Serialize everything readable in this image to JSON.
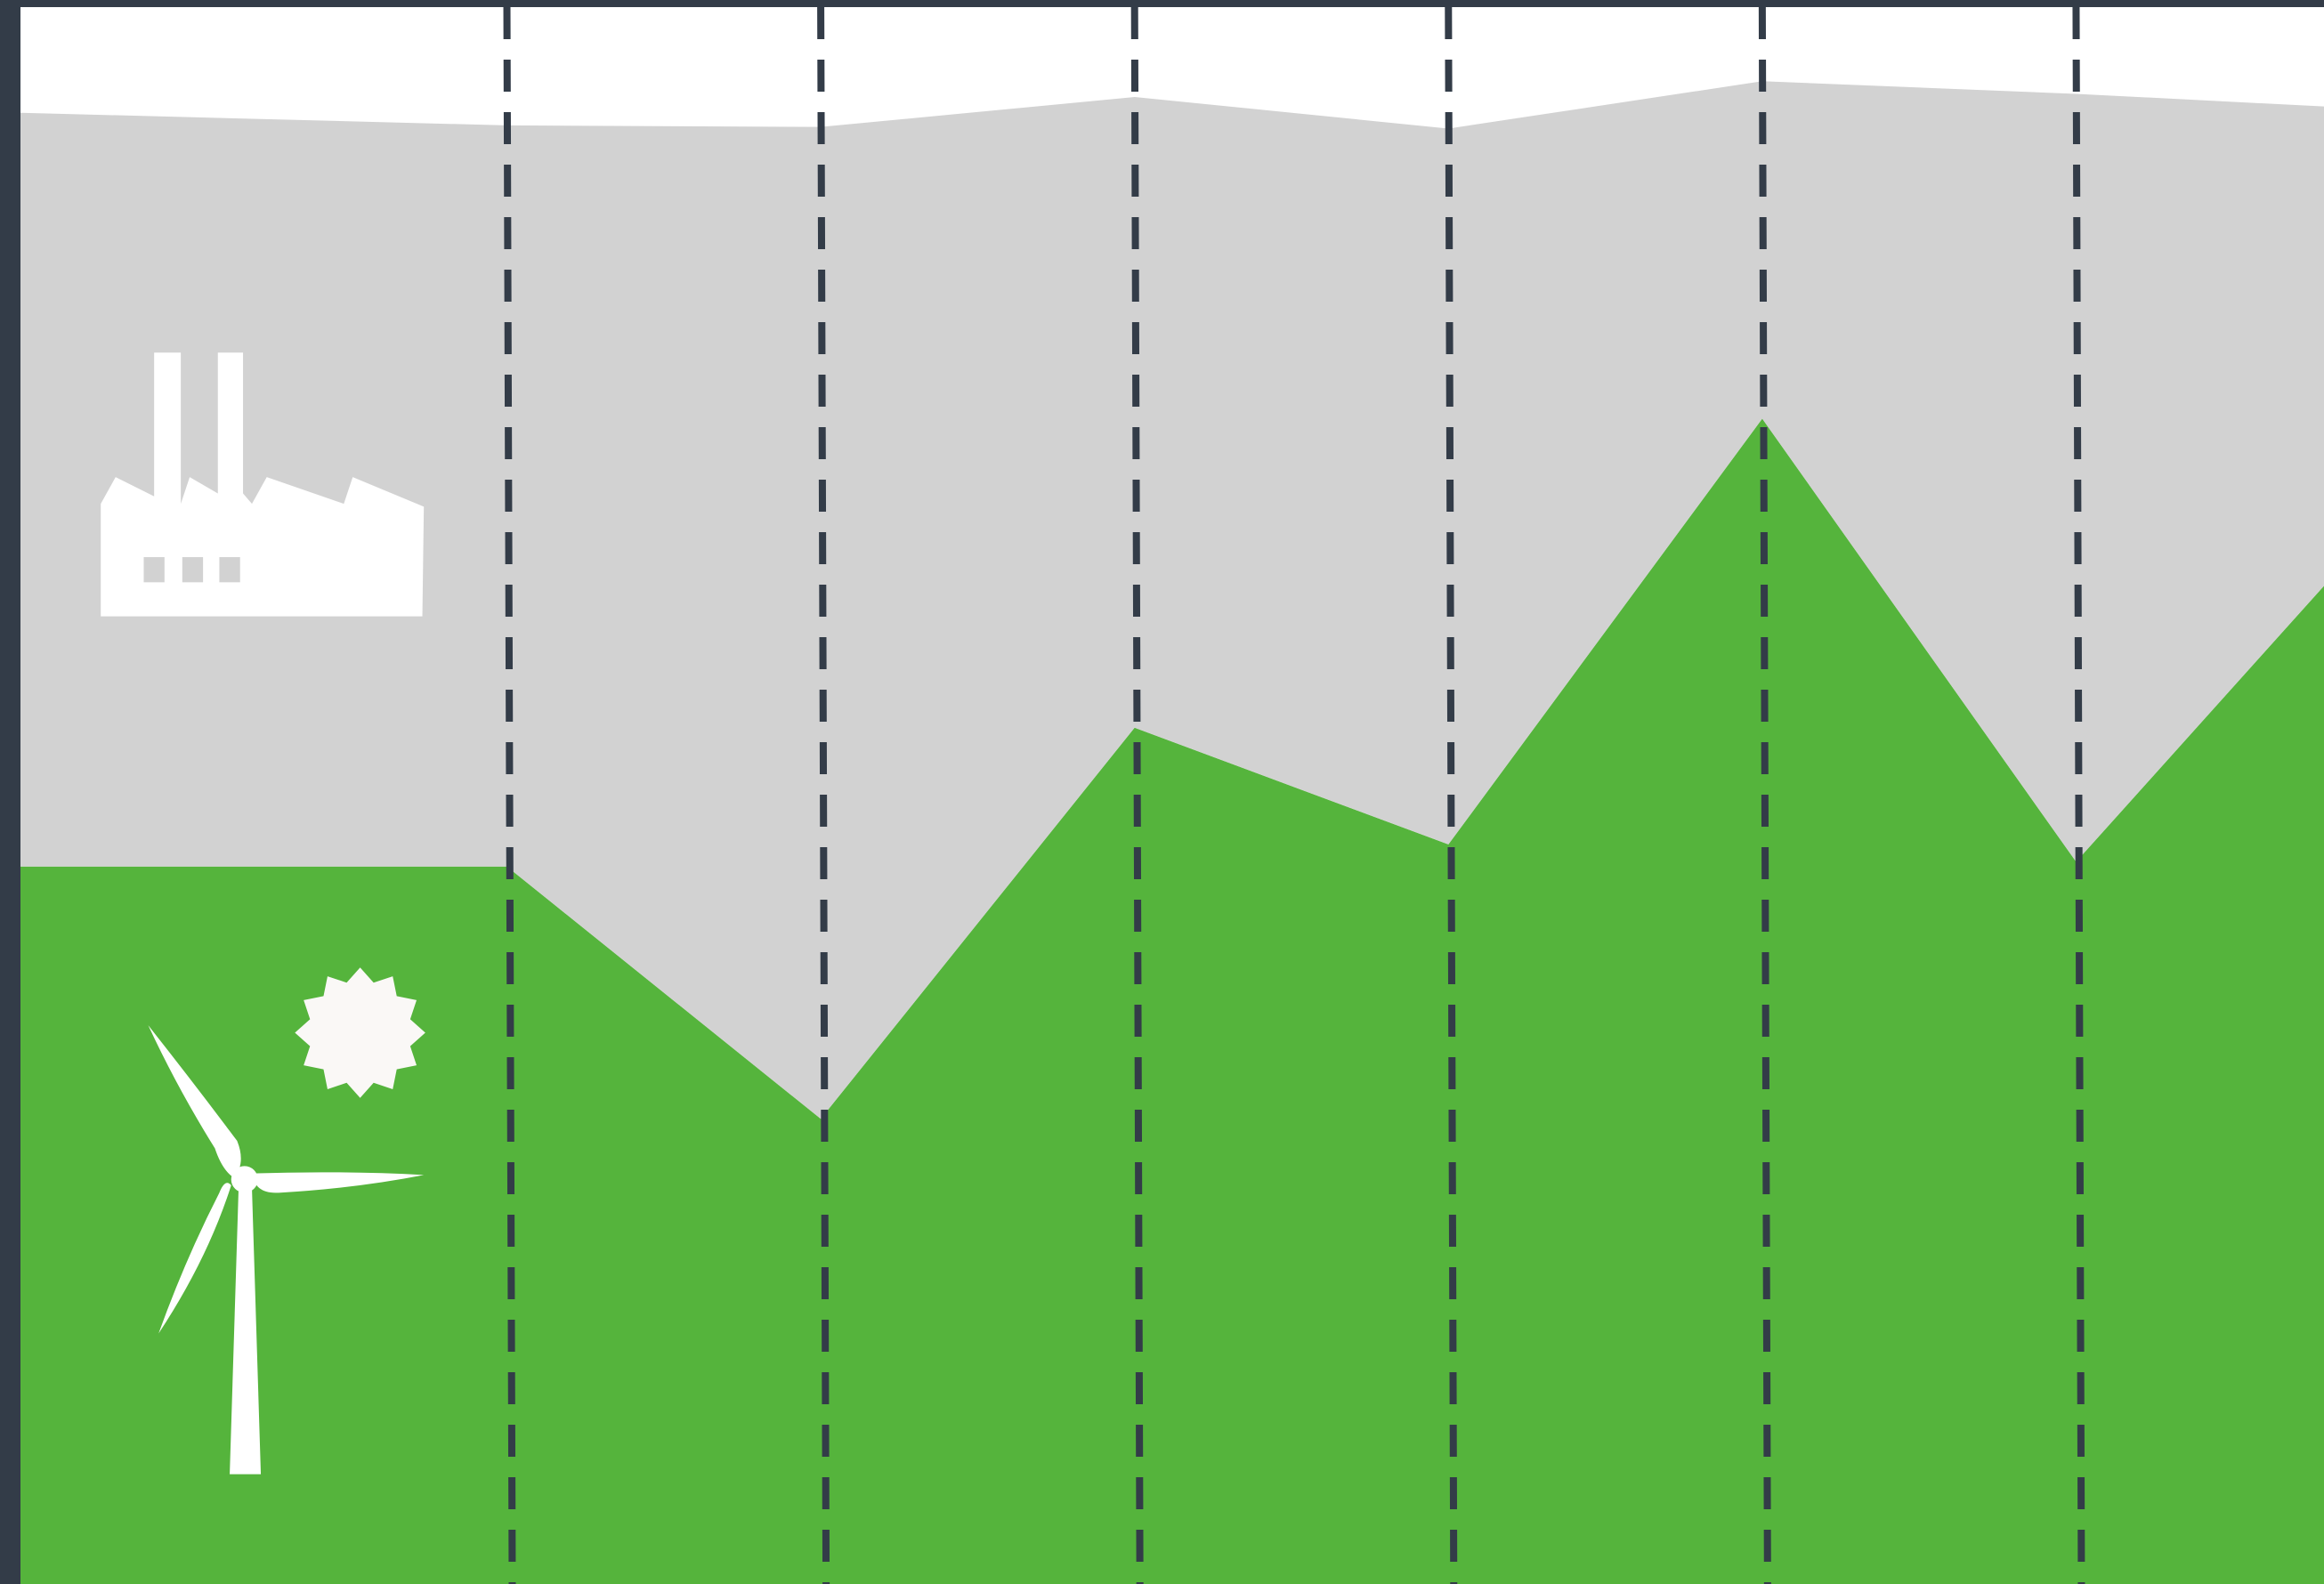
{
  "chart_data": {
    "type": "stacked-area",
    "x": [
      -1.55,
      0,
      1,
      2,
      3,
      4,
      5,
      5.79
    ],
    "xlim": [
      -1.55,
      5.79
    ],
    "ylim": [
      0,
      100
    ],
    "vlines": [
      0,
      1,
      2,
      3,
      4,
      5
    ],
    "vline_color": "#333c48",
    "background": "#ffffff",
    "series": [
      {
        "color": "#55b43c",
        "values": [
          45.5,
          45.5,
          29.5,
          54.3,
          46.9,
          73.9,
          45.8,
          63.3
        ]
      },
      {
        "color": "#d2d2d2",
        "values": [
          47.8,
          47.0,
          62.9,
          40.0,
          45.4,
          21.4,
          48.7,
          30.4
        ]
      }
    ]
  }
}
